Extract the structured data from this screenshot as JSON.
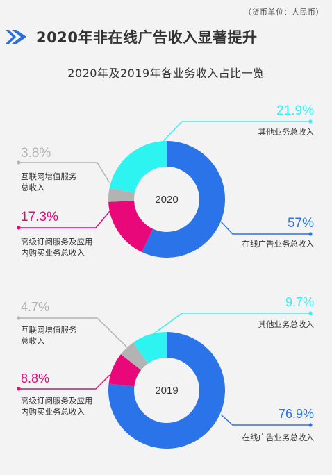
{
  "unit_note": "（货币单位：人民币）",
  "page_title": "2020年非在线广告收入显著提升",
  "subtitle": "2020年及2019年各业务收入占比一览",
  "colors": {
    "online_ads": "#2a73e8",
    "other": "#2ef4f1",
    "value_added": "#b3b3b3",
    "subscription": "#e8087a",
    "arrow": "#2a6fdb"
  },
  "chart_data": [
    {
      "type": "pie",
      "center_label": "2020",
      "slices": [
        {
          "label": "在线广告业务总收入",
          "value": 57,
          "value_text": "57%",
          "color": "#2a73e8"
        },
        {
          "label": "高级订阅服务及应用内购买业务总收入",
          "label_lines": [
            "高级订阅服务及应用",
            "内购买业务总收入"
          ],
          "value": 17.3,
          "value_text": "17.3%",
          "color": "#e8087a"
        },
        {
          "label": "互联网增值服务总收入",
          "label_lines": [
            "互联网增值服务",
            "总收入"
          ],
          "value": 3.8,
          "value_text": "3.8%",
          "color": "#b3b3b3"
        },
        {
          "label": "其他业务总收入",
          "value": 21.9,
          "value_text": "21.9%",
          "color": "#2ef4f1"
        }
      ]
    },
    {
      "type": "pie",
      "center_label": "2019",
      "slices": [
        {
          "label": "在线广告业务总收入",
          "value": 76.9,
          "value_text": "76.9%",
          "color": "#2a73e8"
        },
        {
          "label": "高级订阅服务及应用内购买业务总收入",
          "label_lines": [
            "高级订阅服务及应用",
            "内购买业务总收入"
          ],
          "value": 8.8,
          "value_text": "8.8%",
          "color": "#e8087a"
        },
        {
          "label": "互联网增值服务总收入",
          "label_lines": [
            "互联网增值服务",
            "总收入"
          ],
          "value": 4.7,
          "value_text": "4.7%",
          "color": "#b3b3b3"
        },
        {
          "label": "其他业务总收入",
          "value": 9.7,
          "value_text": "9.7%",
          "color": "#2ef4f1"
        }
      ]
    }
  ]
}
